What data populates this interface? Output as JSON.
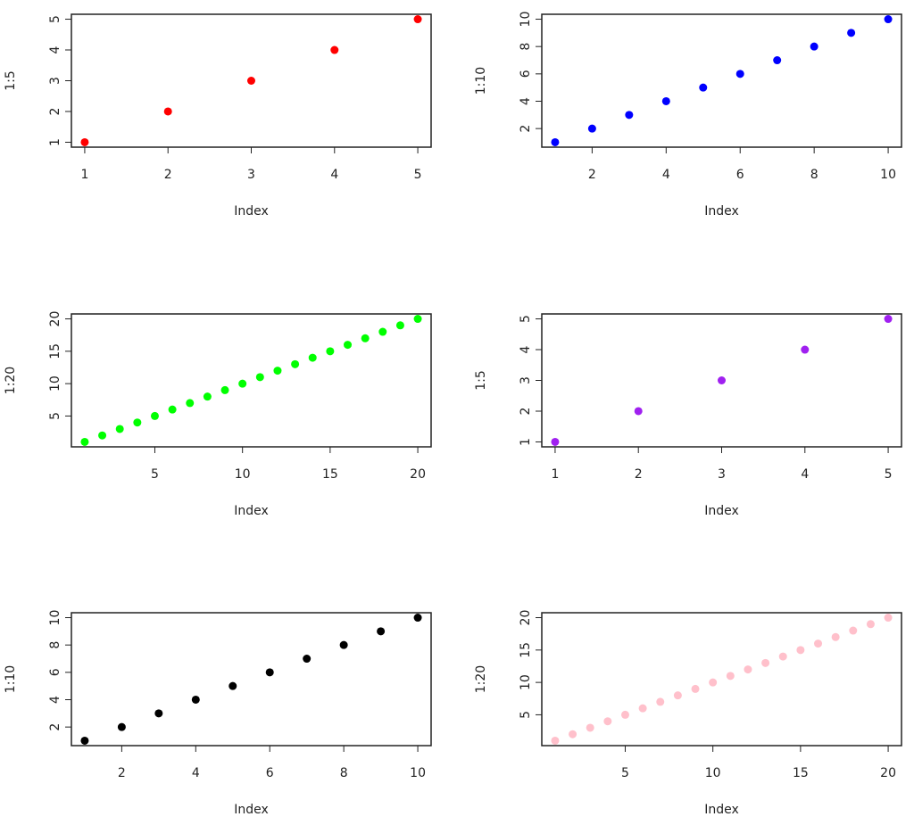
{
  "chart_data": [
    {
      "type": "scatter",
      "xlabel": "Index",
      "ylabel": "1:5",
      "color": "#ff0000",
      "x": [
        1,
        2,
        3,
        4,
        5
      ],
      "values": [
        1,
        2,
        3,
        4,
        5
      ],
      "xlim": [
        0.84,
        5.16
      ],
      "ylim": [
        0.84,
        5.16
      ],
      "xticks": [
        1,
        2,
        3,
        4,
        5
      ],
      "yticks": [
        1,
        2,
        3,
        4,
        5
      ]
    },
    {
      "type": "scatter",
      "xlabel": "Index",
      "ylabel": "1:10",
      "color": "#0000ff",
      "x": [
        1,
        2,
        3,
        4,
        5,
        6,
        7,
        8,
        9,
        10
      ],
      "values": [
        1,
        2,
        3,
        4,
        5,
        6,
        7,
        8,
        9,
        10
      ],
      "xlim": [
        0.64,
        10.36
      ],
      "ylim": [
        0.64,
        10.36
      ],
      "xticks": [
        2,
        4,
        6,
        8,
        10
      ],
      "yticks": [
        2,
        4,
        6,
        8,
        10
      ]
    },
    {
      "type": "scatter",
      "xlabel": "Index",
      "ylabel": "1:20",
      "color": "#00ff00",
      "x": [
        1,
        2,
        3,
        4,
        5,
        6,
        7,
        8,
        9,
        10,
        11,
        12,
        13,
        14,
        15,
        16,
        17,
        18,
        19,
        20
      ],
      "values": [
        1,
        2,
        3,
        4,
        5,
        6,
        7,
        8,
        9,
        10,
        11,
        12,
        13,
        14,
        15,
        16,
        17,
        18,
        19,
        20
      ],
      "xlim": [
        0.24,
        20.76
      ],
      "ylim": [
        0.24,
        20.76
      ],
      "xticks": [
        5,
        10,
        15,
        20
      ],
      "yticks": [
        5,
        10,
        15,
        20
      ]
    },
    {
      "type": "scatter",
      "xlabel": "Index",
      "ylabel": "1:5",
      "color": "#a020f0",
      "x": [
        1,
        2,
        3,
        4,
        5
      ],
      "values": [
        1,
        2,
        3,
        4,
        5
      ],
      "xlim": [
        0.84,
        5.16
      ],
      "ylim": [
        0.84,
        5.16
      ],
      "xticks": [
        1,
        2,
        3,
        4,
        5
      ],
      "yticks": [
        1,
        2,
        3,
        4,
        5
      ]
    },
    {
      "type": "scatter",
      "xlabel": "Index",
      "ylabel": "1:10",
      "color": "#000000",
      "x": [
        1,
        2,
        3,
        4,
        5,
        6,
        7,
        8,
        9,
        10
      ],
      "values": [
        1,
        2,
        3,
        4,
        5,
        6,
        7,
        8,
        9,
        10
      ],
      "xlim": [
        0.64,
        10.36
      ],
      "ylim": [
        0.64,
        10.36
      ],
      "xticks": [
        2,
        4,
        6,
        8,
        10
      ],
      "yticks": [
        2,
        4,
        6,
        8,
        10
      ]
    },
    {
      "type": "scatter",
      "xlabel": "Index",
      "ylabel": "1:20",
      "color": "#ffc0cb",
      "x": [
        1,
        2,
        3,
        4,
        5,
        6,
        7,
        8,
        9,
        10,
        11,
        12,
        13,
        14,
        15,
        16,
        17,
        18,
        19,
        20
      ],
      "values": [
        1,
        2,
        3,
        4,
        5,
        6,
        7,
        8,
        9,
        10,
        11,
        12,
        13,
        14,
        15,
        16,
        17,
        18,
        19,
        20
      ],
      "xlim": [
        0.24,
        20.76
      ],
      "ylim": [
        0.24,
        20.76
      ],
      "xticks": [
        5,
        10,
        15,
        20
      ],
      "yticks": [
        5,
        10,
        15,
        20
      ]
    }
  ]
}
